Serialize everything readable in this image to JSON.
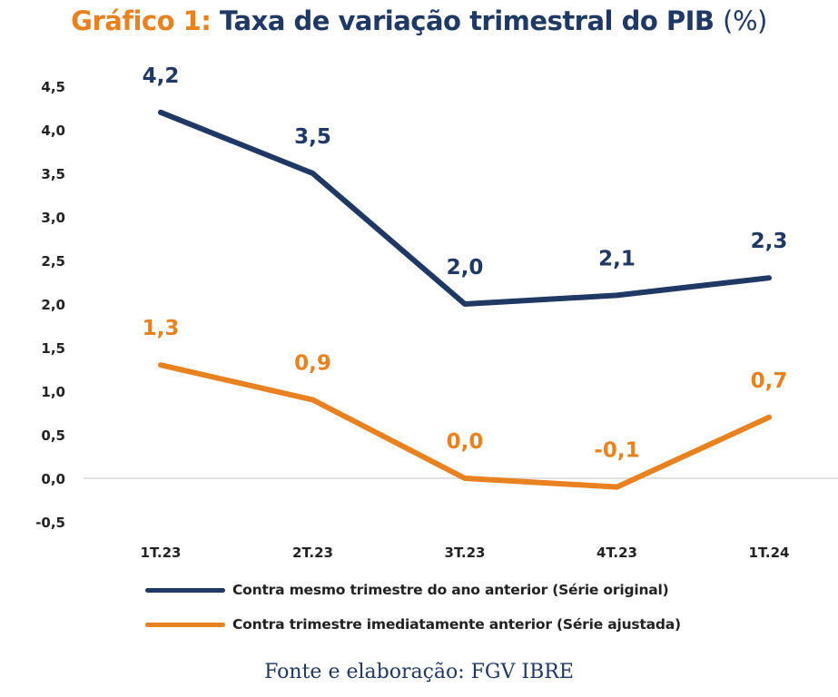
{
  "header": {
    "prefix": "Gráfico 1:",
    "title": "Taxa de variação trimestral do PIB",
    "unit": "(%)"
  },
  "colors": {
    "original": "#1f3864",
    "ajustada": "#e8811f",
    "axis_text": "#222222",
    "grid": "#d9d9d9"
  },
  "chart_data": {
    "type": "line",
    "title": "Taxa de variação trimestral do PIB",
    "categories": [
      "1T.23",
      "2T.23",
      "3T.23",
      "4T.23",
      "1T.24"
    ],
    "y_ticks": [
      "4,5",
      "4,0",
      "3,5",
      "3,0",
      "2,5",
      "2,0",
      "1,5",
      "1,0",
      "0,5",
      "0,0",
      "-0,5"
    ],
    "ylim": [
      -0.5,
      4.5
    ],
    "grid": false,
    "legend_position": "bottom",
    "series": [
      {
        "name": "Contra mesmo trimestre do ano anterior (Série original)",
        "values": [
          4.2,
          3.5,
          2.0,
          2.1,
          2.3
        ],
        "labels": [
          "4,2",
          "3,5",
          "2,0",
          "2,1",
          "2,3"
        ]
      },
      {
        "name": "Contra trimestre imediatamente anterior (Série ajustada)",
        "values": [
          1.3,
          0.9,
          0.0,
          -0.1,
          0.7
        ],
        "labels": [
          "1,3",
          "0,9",
          "0,0",
          "-0,1",
          "0,7"
        ]
      }
    ]
  },
  "footer": {
    "source": "Fonte e elaboração: FGV IBRE"
  }
}
